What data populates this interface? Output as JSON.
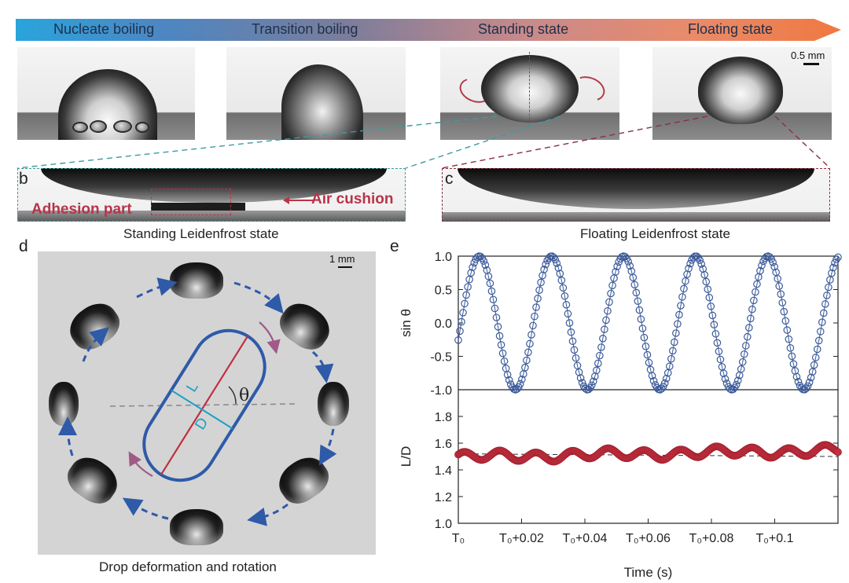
{
  "regimes": [
    "Nucleate boiling",
    "Transition boiling",
    "Standing state",
    "Floating state"
  ],
  "panel_letters": {
    "a": "a",
    "b": "b",
    "c": "c",
    "d": "d",
    "e": "e"
  },
  "scale_bar_a": "0.5 mm",
  "scale_bar_d": "1 mm",
  "annotations": {
    "adhesion": "Adhesion part",
    "air_cushion": "Air cushion"
  },
  "captions": {
    "standing": "Standing Leidenfrost state",
    "floating": "Floating Leidenfrost state",
    "rotation": "Drop deformation and rotation"
  },
  "diagram_labels": {
    "L": "L",
    "D": "D",
    "theta": "θ"
  },
  "colors": {
    "marker_blue": "#3b5a9a",
    "marker_red": "#c0303f",
    "ellipse_blue": "#2e5aa8",
    "axis_red": "#c0303f",
    "cyan": "#1aa0c8",
    "dashed_teal": "#3f9aa0",
    "dashed_dark_red": "#8a3040"
  },
  "chart_data": [
    {
      "type": "scatter",
      "ylabel": "sin θ",
      "ylim": [
        -1.0,
        1.0
      ],
      "yticks": [
        "1.0",
        "0.5",
        "0.0",
        "-0.5",
        "-1.0"
      ],
      "xlim": [
        0,
        0.12
      ],
      "series": [
        {
          "marker": "circle",
          "period_s": 0.0228,
          "phase": -0.26,
          "amplitude": 1.0
        }
      ]
    },
    {
      "type": "scatter",
      "ylabel": "L/D",
      "xlabel": "Time (s)",
      "ylim": [
        1.0,
        2.0
      ],
      "yticks": [
        "1.8",
        "1.6",
        "1.4",
        "1.2",
        "1.0"
      ],
      "xticks": [
        "T₀",
        "T₀+0.02",
        "T₀+0.04",
        "T₀+0.06",
        "T₀+0.08",
        "T₀+0.1"
      ],
      "xtick_values": [
        0,
        0.02,
        0.04,
        0.06,
        0.08,
        0.1
      ],
      "xlim": [
        0,
        0.12
      ],
      "mean": 1.52,
      "series": [
        {
          "marker": "circle-filled",
          "min": 1.45,
          "max": 1.59
        }
      ]
    }
  ]
}
